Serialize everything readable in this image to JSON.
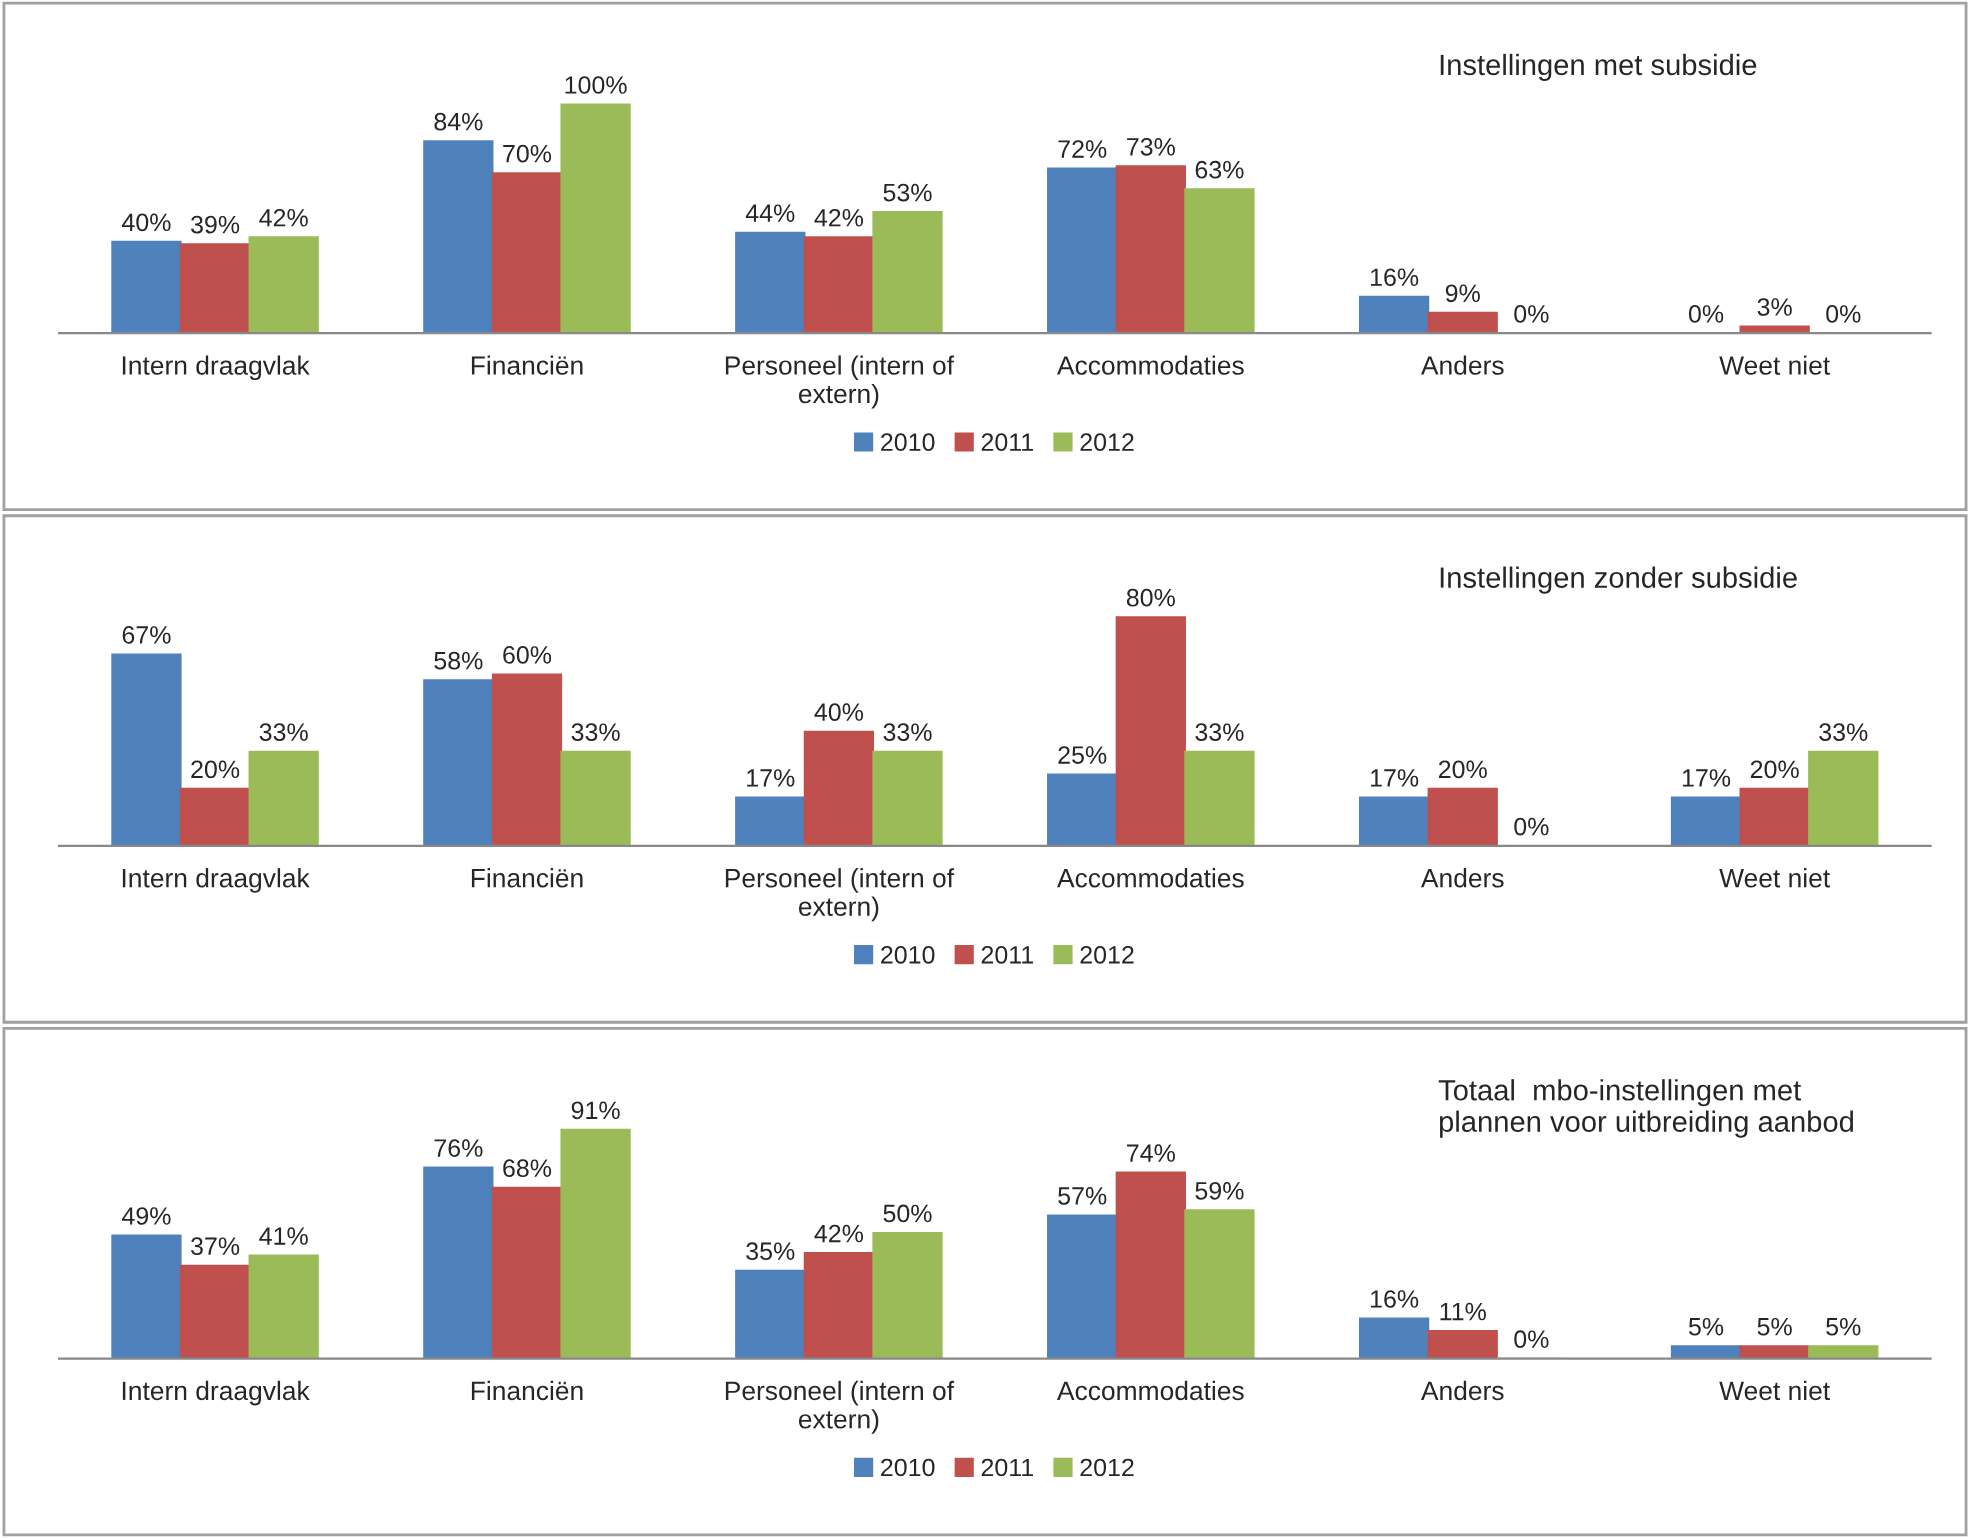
{
  "chart_data": [
    {
      "type": "bar",
      "title": "Instellingen met subsidie",
      "categories": [
        "Intern draagvlak",
        "Financiën",
        "Personeel (intern of\nextern)",
        "Accommodaties",
        "Anders",
        "Weet niet"
      ],
      "series": [
        {
          "name": "2010",
          "color": "#4f81bd",
          "values": [
            40,
            84,
            44,
            72,
            16,
            0
          ],
          "value_labels": [
            "40%",
            "84%",
            "44%",
            "72%",
            "16%",
            "0%"
          ]
        },
        {
          "name": "2011",
          "color": "#c0504d",
          "values": [
            39,
            70,
            42,
            73,
            9,
            3
          ],
          "value_labels": [
            "39%",
            "70%",
            "42%",
            "73%",
            "9%",
            "3%"
          ]
        },
        {
          "name": "2012",
          "color": "#9bbb59",
          "values": [
            42,
            100,
            53,
            63,
            0,
            0
          ],
          "value_labels": [
            "42%",
            "100%",
            "53%",
            "63%",
            "0%",
            "0%"
          ]
        }
      ],
      "legend": "bottom",
      "tick_labels": "x"
    },
    {
      "type": "bar",
      "title": "Instellingen zonder subsidie",
      "categories": [
        "Intern draagvlak",
        "Financiën",
        "Personeel (intern of\nextern)",
        "Accommodaties",
        "Anders",
        "Weet niet"
      ],
      "series": [
        {
          "name": "2010",
          "color": "#4f81bd",
          "values": [
            67,
            58,
            17,
            25,
            17,
            17
          ],
          "value_labels": [
            "67%",
            "58%",
            "17%",
            "25%",
            "17%",
            "17%"
          ]
        },
        {
          "name": "2011",
          "color": "#c0504d",
          "values": [
            20,
            60,
            40,
            80,
            20,
            20
          ],
          "value_labels": [
            "20%",
            "60%",
            "40%",
            "80%",
            "20%",
            "20%"
          ]
        },
        {
          "name": "2012",
          "color": "#9bbb59",
          "values": [
            33,
            33,
            33,
            33,
            0,
            33
          ],
          "value_labels": [
            "33%",
            "33%",
            "33%",
            "33%",
            "0%",
            "33%"
          ]
        }
      ],
      "legend": "bottom",
      "tick_labels": "x"
    },
    {
      "type": "bar",
      "title": "Totaal  mbo-instellingen met\nplannen voor uitbreiding aanbod",
      "categories": [
        "Intern draagvlak",
        "Financiën",
        "Personeel (intern of\nextern)",
        "Accommodaties",
        "Anders",
        "Weet niet"
      ],
      "series": [
        {
          "name": "2010",
          "color": "#4f81bd",
          "values": [
            49,
            76,
            35,
            57,
            16,
            5
          ],
          "value_labels": [
            "49%",
            "76%",
            "35%",
            "57%",
            "16%",
            "5%"
          ]
        },
        {
          "name": "2011",
          "color": "#c0504d",
          "values": [
            37,
            68,
            42,
            74,
            11,
            5
          ],
          "value_labels": [
            "37%",
            "68%",
            "42%",
            "74%",
            "11%",
            "5%"
          ]
        },
        {
          "name": "2012",
          "color": "#9bbb59",
          "values": [
            41,
            91,
            50,
            59,
            0,
            5
          ],
          "value_labels": [
            "41%",
            "91%",
            "50%",
            "59%",
            "0%",
            "5%"
          ]
        }
      ],
      "legend": "bottom",
      "tick_labels": "x"
    }
  ]
}
